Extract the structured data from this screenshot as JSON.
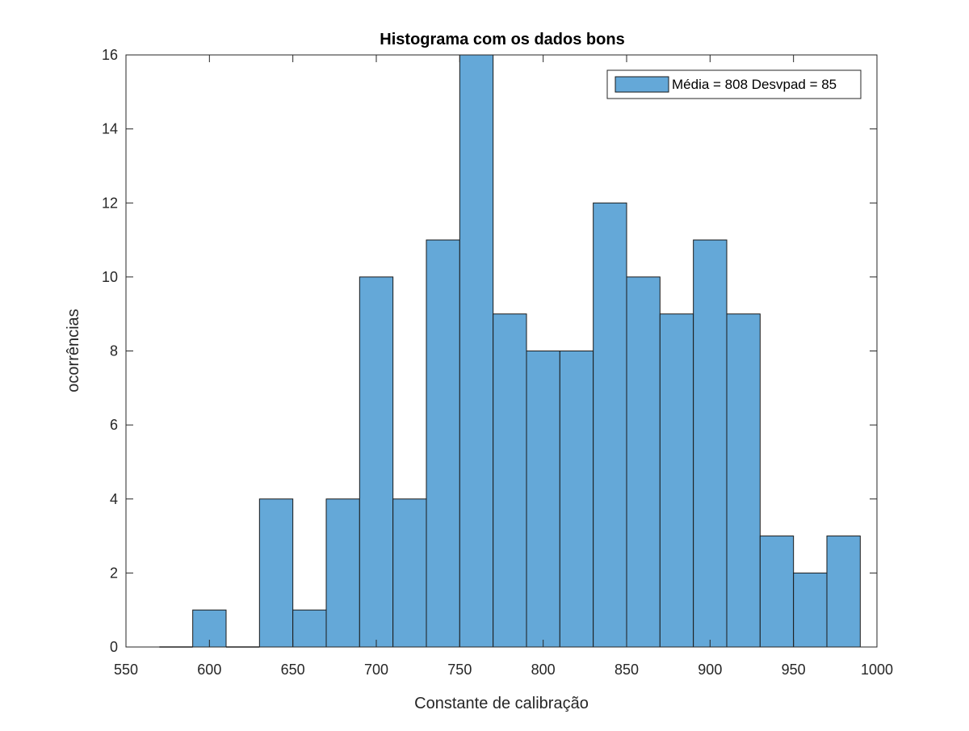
{
  "chart_data": {
    "type": "bar",
    "title": "Histograma com os dados bons",
    "xlabel": "Constante de calibração",
    "ylabel": "ocorrências",
    "xlim": [
      550,
      1000
    ],
    "ylim": [
      0,
      16
    ],
    "xticks": [
      550,
      600,
      650,
      700,
      750,
      800,
      850,
      900,
      950,
      1000
    ],
    "yticks": [
      0,
      2,
      4,
      6,
      8,
      10,
      12,
      14,
      16
    ],
    "bin_edges": [
      570,
      590,
      610,
      630,
      650,
      670,
      690,
      710,
      730,
      750,
      770,
      790,
      810,
      830,
      850,
      870,
      890,
      910,
      930,
      950,
      970,
      990
    ],
    "values": [
      0,
      1,
      0,
      4,
      1,
      4,
      10,
      4,
      11,
      16,
      9,
      8,
      8,
      12,
      10,
      9,
      11,
      9,
      3,
      2,
      3
    ],
    "series": [
      {
        "name": "Média = 808 Desvpad = 85",
        "color": "#64A8D8"
      }
    ],
    "legend_position": "top-right",
    "grid": false,
    "colors": {
      "bar_fill": "#64A8D8",
      "bar_edge": "#1a1a1a",
      "axis": "#262626"
    }
  }
}
